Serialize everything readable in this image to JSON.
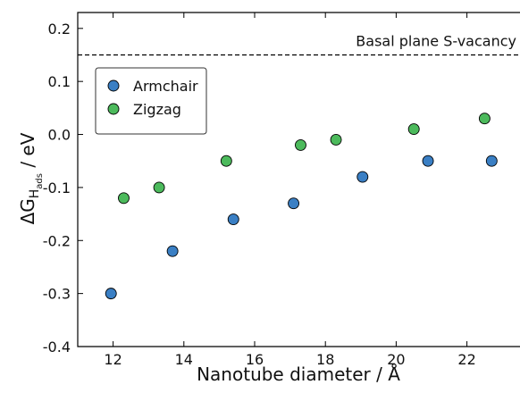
{
  "chart_data": {
    "type": "scatter",
    "x_label": "Nanotube diameter / Å",
    "y_label": {
      "symbol": "ΔG",
      "sub": "H",
      "subsub": "ads",
      "unit": " / eV"
    },
    "xlim": [
      11,
      23.5
    ],
    "ylim": [
      -0.4,
      0.23
    ],
    "xticks": [
      12,
      14,
      16,
      18,
      20,
      22
    ],
    "yticks": [
      -0.4,
      -0.3,
      -0.2,
      -0.1,
      {
        "value": 0,
        "label": "0.0"
      },
      0.1,
      0.2
    ],
    "legend": "upper left",
    "hline": {
      "value": 0.15,
      "label": "Basal plane S-vacancy",
      "style": "dashed"
    },
    "series": [
      {
        "name": "Armchair",
        "color": "#3a7fc4",
        "x": [
          11.94,
          13.68,
          15.4,
          17.1,
          19.05,
          20.9,
          22.7
        ],
        "values": [
          -0.3,
          -0.22,
          -0.16,
          -0.13,
          -0.08,
          -0.05,
          -0.05
        ]
      },
      {
        "name": "Zigzag",
        "color": "#4cba5c",
        "x": [
          12.3,
          13.3,
          15.2,
          17.3,
          18.3,
          20.5,
          22.5
        ],
        "values": [
          -0.12,
          -0.1,
          -0.05,
          -0.02,
          -0.01,
          0.01,
          0.03
        ]
      }
    ]
  }
}
